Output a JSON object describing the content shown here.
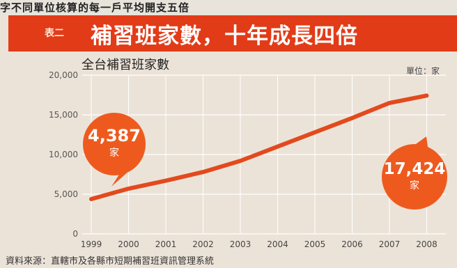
{
  "header": {
    "top_strip": "字不同單位核算的每一戶平均開支五倍",
    "table_label": "表二",
    "title": "補習班家數，十年成長四倍"
  },
  "chart_data": {
    "type": "line",
    "title": "補習班家數，十年成長四倍",
    "subtitle": "全台補習班家數",
    "unit_label": "單位：家",
    "x": [
      "1999",
      "2000",
      "2001",
      "2002",
      "2003",
      "2004",
      "2005",
      "2006",
      "2007",
      "2008"
    ],
    "series": [
      {
        "values": [
          4387,
          5700,
          6700,
          7800,
          9200,
          11000,
          12800,
          14600,
          16500,
          17424
        ]
      }
    ],
    "y_ticks": [
      "0",
      "5,000",
      "10,000",
      "15,000",
      "20,000"
    ],
    "ylim": [
      0,
      20000
    ],
    "grid": true,
    "callouts": [
      {
        "value": "4,387",
        "unit": "家"
      },
      {
        "value": "17,424",
        "unit": "家"
      }
    ],
    "source": "資料來源：直轄市及各縣市短期補習班資訊管理系統",
    "colors": {
      "line": "#e24a1e",
      "callout": "#ee5a1e",
      "banner": "#e23b18",
      "grid": "#ffffff"
    }
  }
}
